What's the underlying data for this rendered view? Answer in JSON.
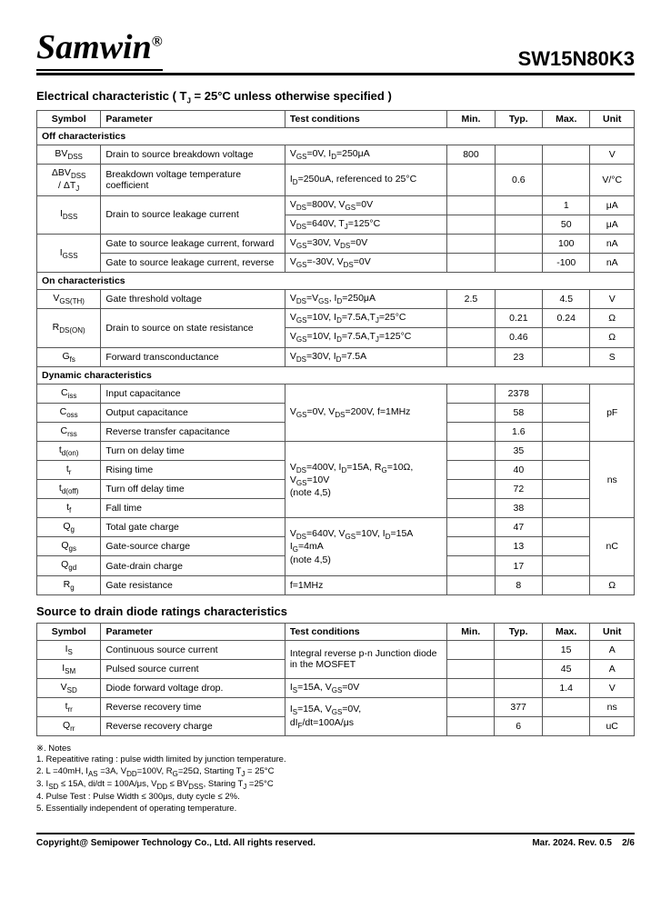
{
  "brand": "Samwin",
  "part_no": "SW15N80K3",
  "elec_title": "Electrical characteristic ( T",
  "elec_title_sub": "J",
  "elec_title_tail": " = 25°C unless otherwise specified )",
  "headers": {
    "sym": "Symbol",
    "param": "Parameter",
    "test": "Test conditions",
    "min": "Min.",
    "typ": "Typ.",
    "max": "Max.",
    "unit": "Unit"
  },
  "subheads": {
    "off": "Off characteristics",
    "on": "On characteristics",
    "dyn": "Dynamic characteristics"
  },
  "diode_title": "Source to drain diode ratings characteristics",
  "rows_off": [
    {
      "sym": "BV<sub>DSS</sub>",
      "param": "Drain to source breakdown voltage",
      "test": "V<sub>GS</sub>=0V, I<sub>D</sub>=250μA",
      "min": "800",
      "typ": "",
      "max": "",
      "unit": "V"
    },
    {
      "sym": "ΔBV<sub>DSS</sub><br>/ ΔT<sub>J</sub>",
      "param": "Breakdown voltage temperature coefficient",
      "test": "I<sub>D</sub>=250uA, referenced to 25°C",
      "min": "",
      "typ": "0.6",
      "max": "",
      "unit": "V/°C"
    }
  ],
  "idss_param": "Drain to source leakage current",
  "idss_sym": "I<sub>DSS</sub>",
  "idss_rows": [
    {
      "test": "V<sub>DS</sub>=800V, V<sub>GS</sub>=0V",
      "min": "",
      "typ": "",
      "max": "1",
      "unit": "μA"
    },
    {
      "test": "V<sub>DS</sub>=640V, T<sub>J</sub>=125°C",
      "min": "",
      "typ": "",
      "max": "50",
      "unit": "μA"
    }
  ],
  "igss_sym": "I<sub>GSS</sub>",
  "igss_rows": [
    {
      "param": "Gate to source leakage current, forward",
      "test": "V<sub>GS</sub>=30V, V<sub>DS</sub>=0V",
      "min": "",
      "typ": "",
      "max": "100",
      "unit": "nA"
    },
    {
      "param": "Gate to source leakage current, reverse",
      "test": "V<sub>GS</sub>=-30V, V<sub>DS</sub>=0V",
      "min": "",
      "typ": "",
      "max": "-100",
      "unit": "nA"
    }
  ],
  "on_vgsth": {
    "sym": "V<sub>GS(TH)</sub>",
    "param": "Gate threshold voltage",
    "test": "V<sub>DS</sub>=V<sub>GS</sub>, I<sub>D</sub>=250μA",
    "min": "2.5",
    "typ": "",
    "max": "4.5",
    "unit": "V"
  },
  "rdson_sym": "R<sub>DS(ON)</sub>",
  "rdson_param": "Drain to source on state resistance",
  "rdson_rows": [
    {
      "test": "V<sub>GS</sub>=10V, I<sub>D</sub>=7.5A,T<sub>J</sub>=25°C",
      "min": "",
      "typ": "0.21",
      "max": "0.24",
      "unit": "Ω"
    },
    {
      "test": "V<sub>GS</sub>=10V, I<sub>D</sub>=7.5A,T<sub>J</sub>=125°C",
      "min": "",
      "typ": "0.46",
      "max": "",
      "unit": "Ω"
    }
  ],
  "gfs": {
    "sym": "G<sub>fs</sub>",
    "param": "Forward transconductance",
    "test": "V<sub>DS</sub>=30V, I<sub>D</sub>=7.5A",
    "min": "",
    "typ": "23",
    "max": "",
    "unit": "S"
  },
  "cap_test": "V<sub>GS</sub>=0V, V<sub>DS</sub>=200V, f=1MHz",
  "cap_rows": [
    {
      "sym": "C<sub>iss</sub>",
      "param": "Input capacitance",
      "typ": "2378"
    },
    {
      "sym": "C<sub>oss</sub>",
      "param": "Output capacitance",
      "typ": "58"
    },
    {
      "sym": "C<sub>rss</sub>",
      "param": "Reverse transfer capacitance",
      "typ": "1.6"
    }
  ],
  "cap_unit": "pF",
  "time_test": "V<sub>DS</sub>=400V, I<sub>D</sub>=15A, R<sub>G</sub>=10Ω,<br>V<sub>GS</sub>=10V<br>(note 4,5)",
  "time_rows": [
    {
      "sym": "t<sub>d(on)</sub>",
      "param": "Turn on delay time",
      "typ": "35"
    },
    {
      "sym": "t<sub>r</sub>",
      "param": "Rising time",
      "typ": "40"
    },
    {
      "sym": "t<sub>d(off)</sub>",
      "param": "Turn off delay time",
      "typ": "72"
    },
    {
      "sym": "t<sub>f</sub>",
      "param": "Fall time",
      "typ": "38"
    }
  ],
  "time_unit": "ns",
  "charge_test": "V<sub>DS</sub>=640V, V<sub>GS</sub>=10V, I<sub>D</sub>=15A<br>I<sub>G</sub>=4mA<br>(note 4,5)",
  "charge_rows": [
    {
      "sym": "Q<sub>g</sub>",
      "param": "Total gate charge",
      "typ": "47"
    },
    {
      "sym": "Q<sub>gs</sub>",
      "param": "Gate-source charge",
      "typ": "13"
    },
    {
      "sym": "Q<sub>gd</sub>",
      "param": "Gate-drain charge",
      "typ": "17"
    }
  ],
  "charge_unit": "nC",
  "rg": {
    "sym": "R<sub>g</sub>",
    "param": "Gate resistance",
    "test": "f=1MHz",
    "typ": "8",
    "unit": "Ω"
  },
  "diode_test1": "Integral reverse p-n Junction diode in the MOSFET",
  "diode_rows": [
    {
      "sym": "I<sub>S</sub>",
      "param": "Continuous source current",
      "max": "15",
      "unit": "A"
    },
    {
      "sym": "I<sub>SM</sub>",
      "param": "Pulsed source current",
      "max": "45",
      "unit": "A"
    }
  ],
  "vsd": {
    "sym": "V<sub>SD</sub>",
    "param": "Diode forward voltage drop.",
    "test": "I<sub>S</sub>=15A, V<sub>GS</sub>=0V",
    "max": "1.4",
    "unit": "V"
  },
  "rr_test": "I<sub>S</sub>=15A, V<sub>GS</sub>=0V,<br>dI<sub>F</sub>/dt=100A/μs",
  "trr": {
    "sym": "t<sub>rr</sub>",
    "param": "Reverse recovery time",
    "typ": "377",
    "unit": "ns"
  },
  "qrr": {
    "sym": "Q<sub>rr</sub>",
    "param": "Reverse recovery charge",
    "typ": "6",
    "unit": "uC"
  },
  "notes_title": "※. Notes",
  "notes": [
    "1.      Repeatitive rating : pulse width limited by junction temperature.",
    "2.      L =40mH, I<sub>AS</sub> =3A, V<sub>DD</sub>=100V, R<sub>G</sub>=25Ω, Starting T<sub>J</sub> = 25°C",
    "3.      I<sub>SD</sub> ≤ 15A, di/dt = 100A/μs, V<sub>DD</sub> ≤ BV<sub>DSS</sub>, Staring T<sub>J</sub> =25°C",
    "4.      Pulse Test : Pulse Width ≤ 300μs, duty cycle ≤ 2%.",
    "5.      Essentially independent of operating temperature."
  ],
  "copyright": "Copyright@ Semipower Technology Co., Ltd. All rights reserved.",
  "date": "Mar. 2024. Rev. 0.5",
  "page": "2/6"
}
